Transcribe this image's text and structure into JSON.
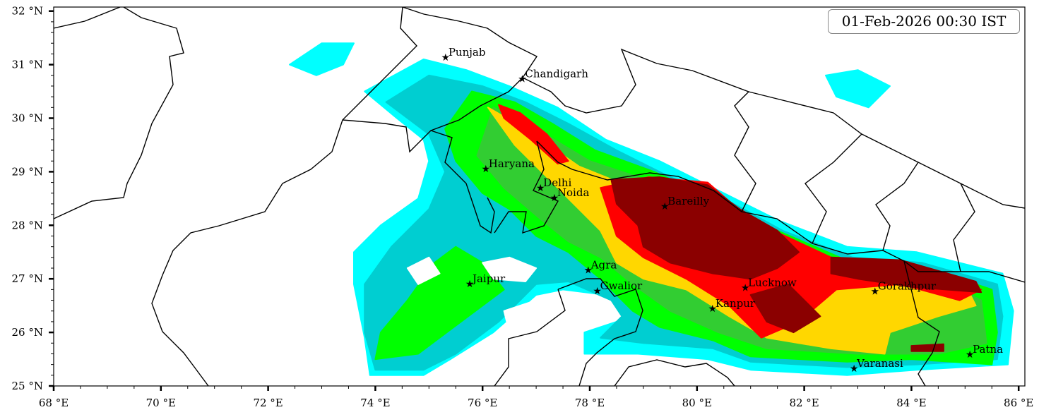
{
  "timestamp": "01-Feb-2026 00:30 IST",
  "axes": {
    "x_ticks": [
      {
        "value": 68,
        "label": "68 °E"
      },
      {
        "value": 70,
        "label": "70 °E"
      },
      {
        "value": 72,
        "label": "72 °E"
      },
      {
        "value": 74,
        "label": "74 °E"
      },
      {
        "value": 76,
        "label": "76 °E"
      },
      {
        "value": 78,
        "label": "78 °E"
      },
      {
        "value": 80,
        "label": "80 °E"
      },
      {
        "value": 82,
        "label": "82 °E"
      },
      {
        "value": 84,
        "label": "84 °E"
      },
      {
        "value": 86,
        "label": "86 °E"
      }
    ],
    "y_ticks": [
      {
        "value": 25,
        "label": "25 °N"
      },
      {
        "value": 26,
        "label": "26 °N"
      },
      {
        "value": 27,
        "label": "27 °N"
      },
      {
        "value": 28,
        "label": "28 °N"
      },
      {
        "value": 29,
        "label": "29 °N"
      },
      {
        "value": 30,
        "label": "30 °N"
      },
      {
        "value": 31,
        "label": "31 °N"
      },
      {
        "value": 32,
        "label": "32 °N"
      }
    ],
    "xlim": [
      68,
      86.12
    ],
    "ylim": [
      25,
      32.08
    ],
    "x_minor_step": 0.5,
    "y_minor_step": 0.2
  },
  "cities": [
    {
      "name": "Punjab",
      "lon": 75.31,
      "lat": 31.14
    },
    {
      "name": "Chandigarh",
      "lon": 76.74,
      "lat": 30.74
    },
    {
      "name": "Haryana",
      "lon": 76.06,
      "lat": 29.06
    },
    {
      "name": "Delhi",
      "lon": 77.08,
      "lat": 28.7
    },
    {
      "name": "Noida",
      "lon": 77.34,
      "lat": 28.52
    },
    {
      "name": "Bareilly",
      "lon": 79.4,
      "lat": 28.36
    },
    {
      "name": "Agra",
      "lon": 77.97,
      "lat": 27.17
    },
    {
      "name": "Jaipur",
      "lon": 75.76,
      "lat": 26.91
    },
    {
      "name": "Gwalior",
      "lon": 78.14,
      "lat": 26.78
    },
    {
      "name": "Lucknow",
      "lon": 80.9,
      "lat": 26.84
    },
    {
      "name": "Kanpur",
      "lon": 80.29,
      "lat": 26.45
    },
    {
      "name": "Gorakhpur",
      "lon": 83.32,
      "lat": 26.77
    },
    {
      "name": "Varanasi",
      "lon": 82.93,
      "lat": 25.33
    },
    {
      "name": "Patna",
      "lon": 85.09,
      "lat": 25.59
    }
  ],
  "precip_layers": [
    {
      "level": 1,
      "color": "#00ffff",
      "polygons": [
        [
          [
            73.8,
            30.5
          ],
          [
            74.9,
            31.1
          ],
          [
            75.7,
            30.9
          ],
          [
            76.5,
            30.6
          ],
          [
            77.4,
            30.2
          ],
          [
            78.3,
            29.6
          ],
          [
            79.3,
            29.2
          ],
          [
            80.3,
            28.7
          ],
          [
            81.5,
            28.1
          ],
          [
            82.8,
            27.6
          ],
          [
            84.1,
            27.5
          ],
          [
            85.7,
            27.1
          ],
          [
            85.9,
            26.4
          ],
          [
            85.8,
            25.4
          ],
          [
            84.1,
            25.3
          ],
          [
            82.8,
            25.2
          ],
          [
            81.0,
            25.3
          ],
          [
            80.2,
            25.5
          ],
          [
            78.9,
            25.6
          ],
          [
            77.9,
            25.6
          ],
          [
            77.9,
            26.0
          ],
          [
            78.5,
            26.2
          ],
          [
            78.9,
            26.4
          ],
          [
            78.3,
            26.7
          ],
          [
            77.5,
            26.8
          ],
          [
            77.0,
            26.7
          ],
          [
            76.2,
            26.0
          ],
          [
            75.4,
            25.5
          ],
          [
            74.9,
            25.2
          ],
          [
            73.9,
            25.2
          ],
          [
            73.8,
            25.9
          ],
          [
            73.6,
            26.9
          ],
          [
            73.6,
            27.5
          ],
          [
            74.1,
            28.0
          ],
          [
            74.8,
            28.5
          ],
          [
            75.0,
            29.2
          ],
          [
            74.9,
            29.6
          ],
          [
            74.4,
            30.0
          ]
        ],
        [
          [
            72.4,
            31.0
          ],
          [
            73.0,
            31.4
          ],
          [
            73.6,
            31.4
          ],
          [
            73.4,
            31.0
          ],
          [
            72.9,
            30.8
          ]
        ],
        [
          [
            82.4,
            30.8
          ],
          [
            83.0,
            30.9
          ],
          [
            83.6,
            30.6
          ],
          [
            83.2,
            30.2
          ],
          [
            82.6,
            30.4
          ]
        ]
      ]
    },
    {
      "level": 2,
      "color": "#00ced1",
      "polygons": [
        [
          [
            74.2,
            30.3
          ],
          [
            75.0,
            30.8
          ],
          [
            76.0,
            30.6
          ],
          [
            76.8,
            30.3
          ],
          [
            77.6,
            29.9
          ],
          [
            78.5,
            29.4
          ],
          [
            79.5,
            28.9
          ],
          [
            80.5,
            28.5
          ],
          [
            81.6,
            27.9
          ],
          [
            82.9,
            27.4
          ],
          [
            84.2,
            27.3
          ],
          [
            85.6,
            26.9
          ],
          [
            85.7,
            26.3
          ],
          [
            85.6,
            25.5
          ],
          [
            84.1,
            25.4
          ],
          [
            82.8,
            25.35
          ],
          [
            81.0,
            25.45
          ],
          [
            80.3,
            25.7
          ],
          [
            79.0,
            25.8
          ],
          [
            78.2,
            25.9
          ],
          [
            78.6,
            26.3
          ],
          [
            78.4,
            26.6
          ],
          [
            77.6,
            26.95
          ],
          [
            77.0,
            26.9
          ],
          [
            76.3,
            26.2
          ],
          [
            75.5,
            25.6
          ],
          [
            74.9,
            25.3
          ],
          [
            74.0,
            25.3
          ],
          [
            73.8,
            26.0
          ],
          [
            73.8,
            26.9
          ],
          [
            74.3,
            27.6
          ],
          [
            75.0,
            28.3
          ],
          [
            75.3,
            29.0
          ],
          [
            75.0,
            29.7
          ]
        ]
      ]
    },
    {
      "level": 3,
      "color": "#00ff00",
      "polygons": [
        [
          [
            75.8,
            30.5
          ],
          [
            76.6,
            30.3
          ],
          [
            77.3,
            29.9
          ],
          [
            78.1,
            29.4
          ],
          [
            79.2,
            29.0
          ],
          [
            80.3,
            28.5
          ],
          [
            81.5,
            27.9
          ],
          [
            82.9,
            27.3
          ],
          [
            84.3,
            27.2
          ],
          [
            85.5,
            26.8
          ],
          [
            85.6,
            26.0
          ],
          [
            85.5,
            25.4
          ],
          [
            84.0,
            25.5
          ],
          [
            82.8,
            25.45
          ],
          [
            81.0,
            25.55
          ],
          [
            80.3,
            25.85
          ],
          [
            79.3,
            26.1
          ],
          [
            78.8,
            26.4
          ],
          [
            78.2,
            27.0
          ],
          [
            77.6,
            27.5
          ],
          [
            77.0,
            27.8
          ],
          [
            76.5,
            28.3
          ],
          [
            76.0,
            28.6
          ],
          [
            75.5,
            29.2
          ],
          [
            75.3,
            29.8
          ]
        ],
        [
          [
            74.0,
            25.5
          ],
          [
            74.8,
            25.6
          ],
          [
            75.6,
            26.2
          ],
          [
            76.4,
            26.8
          ],
          [
            76.0,
            27.3
          ],
          [
            75.5,
            27.6
          ],
          [
            75.1,
            27.3
          ],
          [
            74.6,
            26.6
          ],
          [
            74.1,
            26.0
          ]
        ]
      ]
    },
    {
      "level": 4,
      "color": "#32cd32",
      "polygons": [
        [
          [
            76.2,
            30.2
          ],
          [
            77.0,
            29.8
          ],
          [
            78.0,
            29.2
          ],
          [
            79.2,
            28.8
          ],
          [
            80.5,
            28.3
          ],
          [
            81.8,
            27.6
          ],
          [
            83.2,
            27.1
          ],
          [
            84.5,
            27.0
          ],
          [
            85.3,
            26.6
          ],
          [
            85.4,
            25.8
          ],
          [
            84.5,
            25.6
          ],
          [
            83.0,
            25.6
          ],
          [
            81.3,
            25.7
          ],
          [
            80.4,
            26.0
          ],
          [
            79.5,
            26.4
          ],
          [
            78.8,
            26.9
          ],
          [
            78.2,
            27.4
          ],
          [
            77.6,
            27.7
          ],
          [
            77.1,
            28.1
          ],
          [
            76.4,
            28.7
          ],
          [
            75.9,
            29.3
          ]
        ]
      ]
    },
    {
      "level": 5,
      "color": "#ffd700",
      "polygons": [
        [
          [
            76.1,
            30.2
          ],
          [
            76.8,
            29.8
          ],
          [
            77.8,
            29.1
          ],
          [
            78.8,
            28.7
          ],
          [
            80.0,
            28.6
          ],
          [
            81.0,
            28.0
          ],
          [
            82.4,
            27.4
          ],
          [
            83.6,
            27.3
          ],
          [
            85.0,
            26.9
          ],
          [
            85.2,
            26.5
          ],
          [
            84.5,
            26.3
          ],
          [
            83.6,
            26.0
          ],
          [
            83.5,
            25.6
          ],
          [
            82.5,
            25.7
          ],
          [
            81.3,
            25.9
          ],
          [
            80.6,
            26.3
          ],
          [
            79.8,
            26.8
          ],
          [
            79.0,
            27.0
          ],
          [
            78.5,
            27.3
          ],
          [
            78.2,
            27.9
          ],
          [
            77.5,
            28.6
          ],
          [
            76.6,
            29.5
          ]
        ]
      ]
    },
    {
      "level": 6,
      "color": "#ff0000",
      "polygons": [
        [
          [
            78.2,
            28.7
          ],
          [
            79.1,
            28.9
          ],
          [
            80.2,
            28.8
          ],
          [
            81.0,
            28.1
          ],
          [
            82.5,
            27.4
          ],
          [
            84.0,
            27.2
          ],
          [
            85.3,
            26.8
          ],
          [
            84.9,
            26.6
          ],
          [
            83.8,
            26.9
          ],
          [
            82.6,
            26.8
          ],
          [
            81.9,
            26.2
          ],
          [
            81.2,
            25.9
          ],
          [
            80.6,
            26.5
          ],
          [
            79.8,
            27.0
          ],
          [
            79.0,
            27.4
          ],
          [
            78.5,
            27.8
          ]
        ],
        [
          [
            76.3,
            30.25
          ],
          [
            76.7,
            30.1
          ],
          [
            77.2,
            29.7
          ],
          [
            77.6,
            29.2
          ],
          [
            77.4,
            29.15
          ],
          [
            76.9,
            29.6
          ],
          [
            76.4,
            30.0
          ]
        ]
      ]
    },
    {
      "level": 7,
      "color": "#8b0000",
      "polygons": [
        [
          [
            78.4,
            28.85
          ],
          [
            79.3,
            28.9
          ],
          [
            80.2,
            28.75
          ],
          [
            80.8,
            28.3
          ],
          [
            81.5,
            27.9
          ],
          [
            81.9,
            27.5
          ],
          [
            81.5,
            27.2
          ],
          [
            81.0,
            27.0
          ],
          [
            80.3,
            27.1
          ],
          [
            79.5,
            27.3
          ],
          [
            79.0,
            27.6
          ],
          [
            78.9,
            28.0
          ],
          [
            78.5,
            28.4
          ]
        ],
        [
          [
            82.5,
            27.4
          ],
          [
            83.8,
            27.35
          ],
          [
            85.2,
            26.95
          ],
          [
            85.3,
            26.75
          ],
          [
            84.0,
            26.85
          ],
          [
            83.0,
            27.0
          ],
          [
            82.5,
            27.1
          ]
        ],
        [
          [
            81.0,
            26.7
          ],
          [
            81.7,
            26.9
          ],
          [
            82.3,
            26.3
          ],
          [
            81.8,
            26.0
          ],
          [
            81.3,
            26.2
          ]
        ],
        [
          [
            84.0,
            25.75
          ],
          [
            84.6,
            25.78
          ],
          [
            84.6,
            25.65
          ],
          [
            84.0,
            25.65
          ]
        ]
      ]
    },
    {
      "level": 0,
      "color": "#ffffff",
      "polygons": [
        [
          [
            76.0,
            27.3
          ],
          [
            76.5,
            27.4
          ],
          [
            77.0,
            27.2
          ],
          [
            76.8,
            26.95
          ],
          [
            76.2,
            27.0
          ]
        ],
        [
          [
            76.4,
            26.4
          ],
          [
            77.0,
            26.6
          ],
          [
            77.4,
            26.3
          ],
          [
            77.0,
            25.9
          ],
          [
            76.5,
            26.0
          ]
        ],
        [
          [
            74.6,
            27.2
          ],
          [
            75.0,
            27.4
          ],
          [
            75.2,
            27.1
          ],
          [
            74.8,
            26.9
          ]
        ]
      ]
    }
  ]
}
